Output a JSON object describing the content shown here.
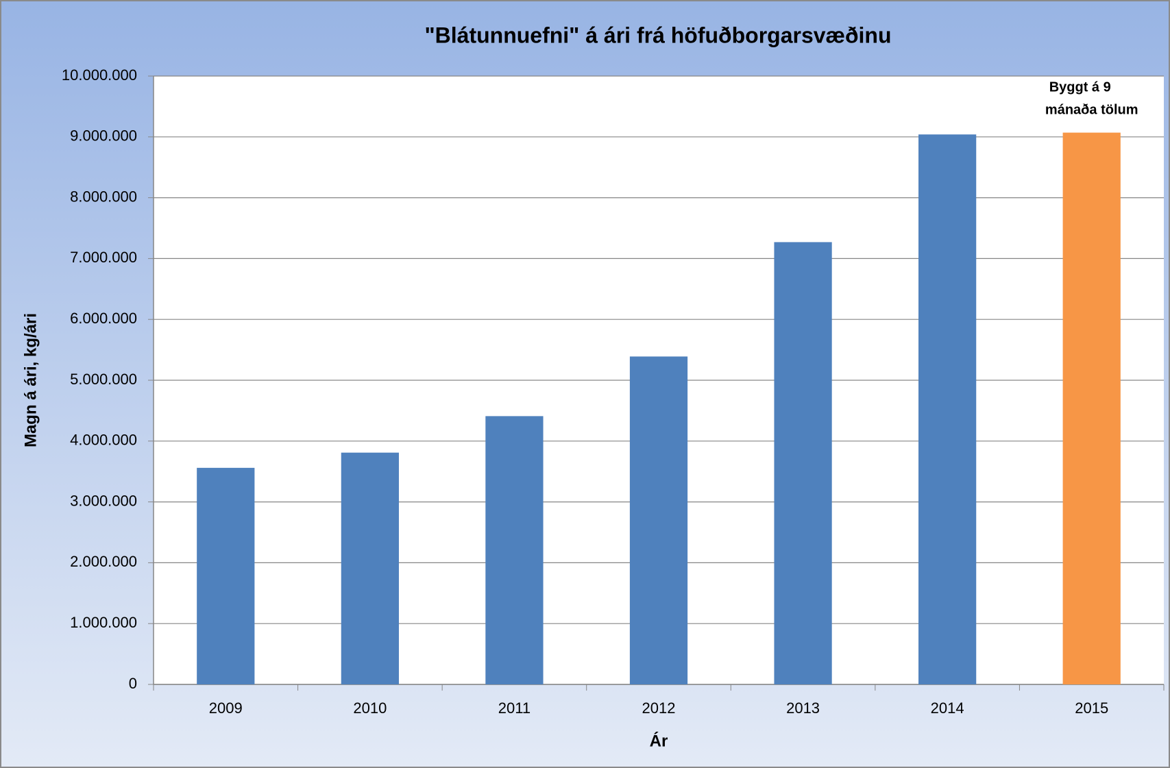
{
  "chart_data": {
    "type": "bar",
    "title": "\"Blátunnuefni\" á ári frá höfuðborgarsvæðinu",
    "x_label": "Ár",
    "y_label": "Magn á ári, kg/ári",
    "categories": [
      "2009",
      "2010",
      "2011",
      "2012",
      "2013",
      "2014",
      "2015"
    ],
    "values": [
      3560000,
      3810000,
      4410000,
      5390000,
      7270000,
      9040000,
      9070000
    ],
    "colors": [
      "#4f81bd",
      "#4f81bd",
      "#4f81bd",
      "#4f81bd",
      "#4f81bd",
      "#4f81bd",
      "#f79646"
    ],
    "annotation": [
      "Byggt á 9",
      "mánaða tölum"
    ],
    "ylim": [
      0,
      10000000
    ],
    "yticks": [
      0,
      {
        "value": 1000000,
        "label": "1.000.000"
      },
      {
        "value": 2000000,
        "label": "2.000.000"
      },
      {
        "value": 3000000,
        "label": "3.000.000"
      },
      {
        "value": 4000000,
        "label": "4.000.000"
      },
      {
        "value": 5000000,
        "label": "5.000.000"
      },
      {
        "value": 6000000,
        "label": "6.000.000"
      },
      {
        "value": 7000000,
        "label": "7.000.000"
      },
      {
        "value": 8000000,
        "label": "8.000.000"
      },
      {
        "value": 9000000,
        "label": "9.000.000"
      },
      {
        "value": 10000000,
        "label": "10.000.000"
      }
    ],
    "grid": true
  }
}
